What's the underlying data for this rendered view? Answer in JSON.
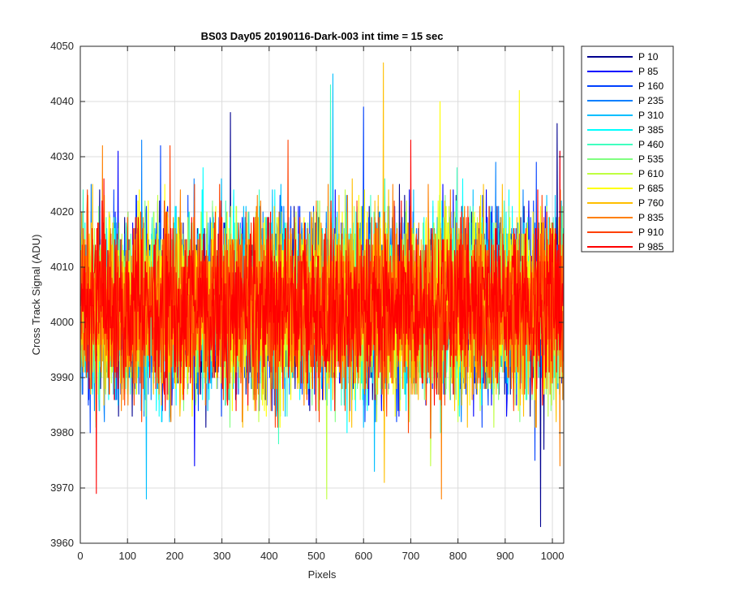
{
  "chart_data": {
    "type": "line",
    "title": "BS03 Day05 20190116-Dark-003 int time = 15 sec",
    "xlabel": "Pixels",
    "ylabel": "Cross Track Signal (ADU)",
    "xlim": [
      0,
      1024
    ],
    "ylim": [
      3960,
      4050
    ],
    "xticks": [
      0,
      100,
      200,
      300,
      400,
      500,
      600,
      700,
      800,
      900,
      1000
    ],
    "yticks": [
      3960,
      3970,
      3980,
      3990,
      4000,
      4010,
      4020,
      4030,
      4040,
      4050
    ],
    "xtick_labels": [
      "0",
      "100",
      "200",
      "300",
      "400",
      "500",
      "600",
      "700",
      "800",
      "900",
      "1000"
    ],
    "ytick_labels": [
      "3960",
      "3970",
      "3980",
      "3990",
      "4000",
      "4010",
      "4020",
      "4030",
      "4040",
      "4050"
    ],
    "grid": true,
    "legend_position": "outside-top-right",
    "series": [
      {
        "name": "P 10",
        "color": "#00008f",
        "mean": 4003,
        "sd": 8,
        "peaks": [
          [
            318,
            4038
          ],
          [
            975,
            3963
          ],
          [
            982,
            3977
          ],
          [
            1010,
            4036
          ]
        ]
      },
      {
        "name": "P 85",
        "color": "#0000ff",
        "mean": 4003,
        "sd": 8,
        "peaks": [
          [
            80,
            4031
          ],
          [
            242,
            3974
          ],
          [
            1016,
            4031
          ]
        ]
      },
      {
        "name": "P 160",
        "color": "#0040ff",
        "mean": 4003,
        "sd": 8,
        "peaks": [
          [
            170,
            4032
          ],
          [
            600,
            4039
          ],
          [
            963,
            3975
          ]
        ]
      },
      {
        "name": "P 235",
        "color": "#0080ff",
        "mean": 4003,
        "sd": 8,
        "peaks": [
          [
            130,
            4033
          ],
          [
            880,
            4029
          ]
        ]
      },
      {
        "name": "P 310",
        "color": "#00bfff",
        "mean": 4003,
        "sd": 8,
        "peaks": [
          [
            140,
            3968
          ],
          [
            535,
            4045
          ],
          [
            623,
            3973
          ]
        ]
      },
      {
        "name": "P 385",
        "color": "#00ffff",
        "mean": 4003,
        "sd": 8,
        "peaks": [
          [
            260,
            4028
          ],
          [
            810,
            4026
          ]
        ]
      },
      {
        "name": "P 460",
        "color": "#40ffbf",
        "mean": 4003,
        "sd": 8,
        "peaks": [
          [
            530,
            4043
          ],
          [
            420,
            3978
          ]
        ]
      },
      {
        "name": "P 535",
        "color": "#80ff80",
        "mean": 4003,
        "sd": 8,
        "peaks": [
          [
            540,
            3982
          ],
          [
            700,
            4020
          ]
        ]
      },
      {
        "name": "P 610",
        "color": "#bfff40",
        "mean": 4003,
        "sd": 8,
        "peaks": [
          [
            522,
            3968
          ],
          [
            742,
            3974
          ]
        ]
      },
      {
        "name": "P 685",
        "color": "#ffff00",
        "mean": 4003,
        "sd": 8,
        "peaks": [
          [
            762,
            4040
          ],
          [
            930,
            4042
          ]
        ]
      },
      {
        "name": "P 760",
        "color": "#ffbf00",
        "mean": 4003,
        "sd": 8,
        "peaks": [
          [
            642,
            4047
          ],
          [
            644,
            3971
          ]
        ]
      },
      {
        "name": "P 835",
        "color": "#ff8000",
        "mean": 4003,
        "sd": 8,
        "peaks": [
          [
            47,
            4032
          ],
          [
            765,
            3968
          ],
          [
            1016,
            3974
          ]
        ]
      },
      {
        "name": "P 910",
        "color": "#ff4000",
        "mean": 4003,
        "sd": 8,
        "peaks": [
          [
            190,
            4032
          ],
          [
            440,
            4033
          ]
        ]
      },
      {
        "name": "P 985",
        "color": "#ff0000",
        "mean": 4003,
        "sd": 8,
        "peaks": [
          [
            34,
            3969
          ],
          [
            700,
            4033
          ],
          [
            1016,
            4031
          ]
        ]
      }
    ]
  }
}
